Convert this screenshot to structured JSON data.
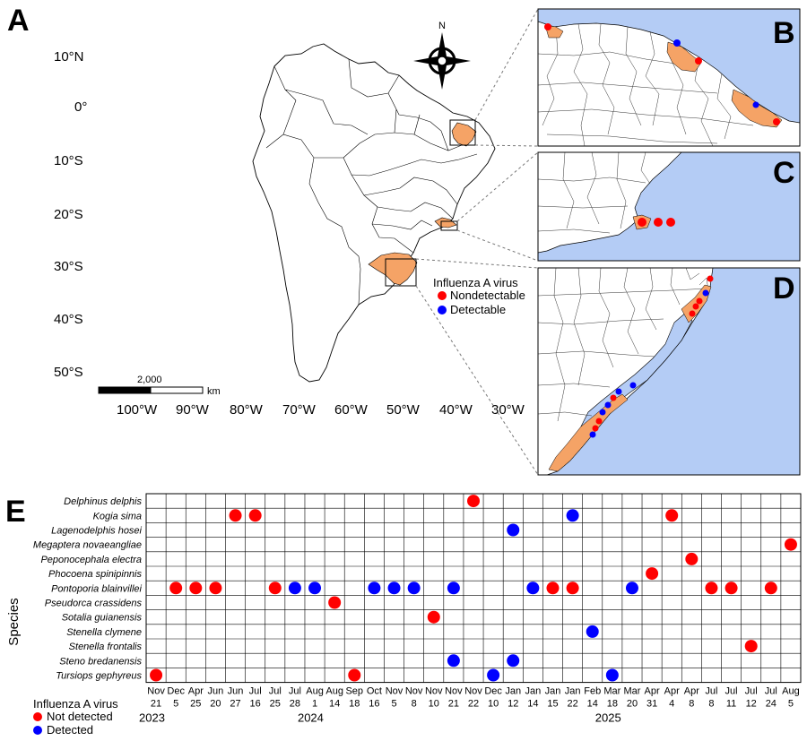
{
  "panel_a": {
    "letter": "A",
    "lat_labels": [
      "10°N",
      "0°",
      "10°S",
      "20°S",
      "30°S",
      "40°S",
      "50°S"
    ],
    "lon_labels": [
      "100°W",
      "90°W",
      "80°W",
      "70°W",
      "60°W",
      "50°W",
      "40°W",
      "30°W"
    ],
    "compass_label": "N",
    "scale_value": "2,000",
    "scale_unit": "km",
    "legend": {
      "title": "Influenza A virus",
      "items": [
        {
          "label": "Nondetectable",
          "color": "#ff0000"
        },
        {
          "label": "Detectable",
          "color": "#0000ff"
        }
      ]
    }
  },
  "panel_b": {
    "letter": "B"
  },
  "panel_c": {
    "letter": "C"
  },
  "panel_d": {
    "letter": "D"
  },
  "colors": {
    "highlight": "#f5a366",
    "water": "#b4ccf5",
    "not_detected": "#ff0000",
    "detected": "#0000ff"
  },
  "panel_e": {
    "letter": "E",
    "y_axis_title": "Species",
    "species": [
      "Delphinus delphis",
      "Kogia sima",
      "Lagenodelphis hosei",
      "Megaptera novaeangliae",
      "Peponocephala electra",
      "Phocoena spinipinnis",
      "Pontoporia blainvillei",
      "Pseudorca crassidens",
      "Sotalia guianensis",
      "Stenella clymene",
      "Stenella frontalis",
      "Steno bredanensis",
      "Tursiops gephyreus"
    ],
    "dates": [
      {
        "month": "Nov",
        "day": "21"
      },
      {
        "month": "Dec",
        "day": "5"
      },
      {
        "month": "Apr",
        "day": "25"
      },
      {
        "month": "Jun",
        "day": "20"
      },
      {
        "month": "Jun",
        "day": "27"
      },
      {
        "month": "Jul",
        "day": "16"
      },
      {
        "month": "Jul",
        "day": "25"
      },
      {
        "month": "Jul",
        "day": "28"
      },
      {
        "month": "Aug",
        "day": "1"
      },
      {
        "month": "Aug",
        "day": "14"
      },
      {
        "month": "Sep",
        "day": "18"
      },
      {
        "month": "Oct",
        "day": "16"
      },
      {
        "month": "Nov",
        "day": "5"
      },
      {
        "month": "Nov",
        "day": "8"
      },
      {
        "month": "Nov",
        "day": "10"
      },
      {
        "month": "Nov",
        "day": "21"
      },
      {
        "month": "Nov",
        "day": "22"
      },
      {
        "month": "Dec",
        "day": "10"
      },
      {
        "month": "Jan",
        "day": "12"
      },
      {
        "month": "Jan",
        "day": "14"
      },
      {
        "month": "Jan",
        "day": "15"
      },
      {
        "month": "Jan",
        "day": "22"
      },
      {
        "month": "Feb",
        "day": "14"
      },
      {
        "month": "Mar",
        "day": "18"
      },
      {
        "month": "Mar",
        "day": "20"
      },
      {
        "month": "Apr",
        "day": "31"
      },
      {
        "month": "Apr",
        "day": "4"
      },
      {
        "month": "Apr",
        "day": "8"
      },
      {
        "month": "Jul",
        "day": "8"
      },
      {
        "month": "Jul",
        "day": "11"
      },
      {
        "month": "Jul",
        "day": "12"
      },
      {
        "month": "Jul",
        "day": "24"
      },
      {
        "month": "Aug",
        "day": "5"
      }
    ],
    "years": [
      {
        "label": "2023",
        "col": 0
      },
      {
        "label": "2024",
        "col": 8
      },
      {
        "label": "2025",
        "col": 23
      }
    ],
    "legend": {
      "title": "Influenza A virus",
      "items": [
        {
          "label": "Not detected",
          "color": "#ff0000"
        },
        {
          "label": "Detected",
          "color": "#0000ff"
        }
      ]
    },
    "detections": [
      {
        "species": "Delphinus delphis",
        "col": 16,
        "result": "not_detected"
      },
      {
        "species": "Kogia sima",
        "col": 4,
        "result": "not_detected"
      },
      {
        "species": "Kogia sima",
        "col": 5,
        "result": "not_detected"
      },
      {
        "species": "Kogia sima",
        "col": 21,
        "result": "detected"
      },
      {
        "species": "Kogia sima",
        "col": 26,
        "result": "not_detected"
      },
      {
        "species": "Lagenodelphis hosei",
        "col": 18,
        "result": "detected"
      },
      {
        "species": "Megaptera novaeangliae",
        "col": 32,
        "result": "not_detected"
      },
      {
        "species": "Peponocephala electra",
        "col": 27,
        "result": "not_detected"
      },
      {
        "species": "Phocoena spinipinnis",
        "col": 25,
        "result": "not_detected"
      },
      {
        "species": "Pontoporia blainvillei",
        "col": 1,
        "result": "not_detected"
      },
      {
        "species": "Pontoporia blainvillei",
        "col": 2,
        "result": "not_detected"
      },
      {
        "species": "Pontoporia blainvillei",
        "col": 3,
        "result": "not_detected"
      },
      {
        "species": "Pontoporia blainvillei",
        "col": 6,
        "result": "not_detected"
      },
      {
        "species": "Pontoporia blainvillei",
        "col": 7,
        "result": "detected"
      },
      {
        "species": "Pontoporia blainvillei",
        "col": 8,
        "result": "detected"
      },
      {
        "species": "Pontoporia blainvillei",
        "col": 11,
        "result": "detected"
      },
      {
        "species": "Pontoporia blainvillei",
        "col": 12,
        "result": "detected"
      },
      {
        "species": "Pontoporia blainvillei",
        "col": 13,
        "result": "detected"
      },
      {
        "species": "Pontoporia blainvillei",
        "col": 15,
        "result": "detected"
      },
      {
        "species": "Pontoporia blainvillei",
        "col": 19,
        "result": "detected"
      },
      {
        "species": "Pontoporia blainvillei",
        "col": 20,
        "result": "not_detected"
      },
      {
        "species": "Pontoporia blainvillei",
        "col": 21,
        "result": "not_detected"
      },
      {
        "species": "Pontoporia blainvillei",
        "col": 24,
        "result": "detected"
      },
      {
        "species": "Pontoporia blainvillei",
        "col": 28,
        "result": "not_detected"
      },
      {
        "species": "Pontoporia blainvillei",
        "col": 29,
        "result": "not_detected"
      },
      {
        "species": "Pontoporia blainvillei",
        "col": 31,
        "result": "not_detected"
      },
      {
        "species": "Pseudorca crassidens",
        "col": 9,
        "result": "not_detected"
      },
      {
        "species": "Sotalia guianensis",
        "col": 14,
        "result": "not_detected"
      },
      {
        "species": "Stenella clymene",
        "col": 22,
        "result": "detected"
      },
      {
        "species": "Stenella frontalis",
        "col": 30,
        "result": "not_detected"
      },
      {
        "species": "Steno bredanensis",
        "col": 15,
        "result": "detected"
      },
      {
        "species": "Steno bredanensis",
        "col": 18,
        "result": "detected"
      },
      {
        "species": "Tursiops gephyreus",
        "col": 0,
        "result": "not_detected"
      },
      {
        "species": "Tursiops gephyreus",
        "col": 10,
        "result": "not_detected"
      },
      {
        "species": "Tursiops gephyreus",
        "col": 17,
        "result": "detected"
      },
      {
        "species": "Tursiops gephyreus",
        "col": 23,
        "result": "detected"
      }
    ]
  }
}
